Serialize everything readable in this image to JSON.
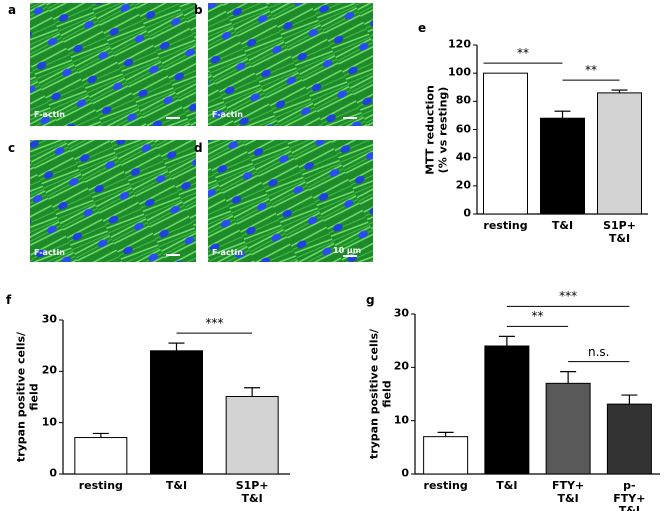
{
  "panels": [
    {
      "label": "a",
      "text": "F-actin"
    },
    {
      "label": "b",
      "text": "F-actin"
    },
    {
      "label": "c",
      "text": "F-actin"
    },
    {
      "label": "d",
      "text": "F-actin",
      "scale_bar": "10 µm"
    }
  ],
  "chart_data": [
    {
      "type": "bar",
      "label": "e",
      "ylabel": "MTT reduction\n(% vs resting)",
      "categories": [
        "resting",
        "T&I",
        "S1P+\nT&I"
      ],
      "values": [
        100,
        68,
        86
      ],
      "errors": [
        0,
        5,
        2
      ],
      "colors": [
        "#ffffff",
        "#000000",
        "#d3d3d3"
      ],
      "ylim": [
        0,
        120
      ],
      "yticks": [
        0,
        20,
        40,
        60,
        80,
        100,
        120
      ],
      "annotations": [
        {
          "text": "**",
          "from": "resting",
          "to": "T&I"
        },
        {
          "text": "**",
          "from": "T&I",
          "to": "S1P+\nT&I"
        }
      ]
    },
    {
      "type": "bar",
      "label": "f",
      "ylabel": "trypan positive cells/\nfield",
      "categories": [
        "resting",
        "T&I",
        "S1P+\nT&I"
      ],
      "values": [
        7.1,
        24,
        15.1
      ],
      "errors": [
        0.8,
        1.5,
        1.7
      ],
      "colors": [
        "#ffffff",
        "#000000",
        "#d3d3d3"
      ],
      "ylim": [
        0,
        30
      ],
      "yticks": [
        0,
        10,
        20,
        30
      ],
      "annotations": [
        {
          "text": "***",
          "from": "T&I",
          "to": "S1P+\nT&I"
        }
      ]
    },
    {
      "type": "bar",
      "label": "g",
      "ylabel": "trypan positive cells/\nfield",
      "categories": [
        "resting",
        "T&I",
        "FTY+\nT&I",
        "p-FTY+\nT&I"
      ],
      "values": [
        7,
        24,
        17,
        13.1
      ],
      "errors": [
        0.8,
        1.8,
        2.2,
        1.7
      ],
      "colors": [
        "#ffffff",
        "#000000",
        "#595959",
        "#333333"
      ],
      "ylim": [
        0,
        30
      ],
      "yticks": [
        0,
        10,
        20,
        30
      ],
      "annotations": [
        {
          "text": "**",
          "from": "T&I",
          "to": "FTY+\nT&I"
        },
        {
          "text": "n.s.",
          "from": "FTY+\nT&I",
          "to": "p-FTY+\nT&I"
        },
        {
          "text": "***",
          "from": "T&I",
          "to": "p-FTY+\nT&I"
        }
      ]
    }
  ]
}
